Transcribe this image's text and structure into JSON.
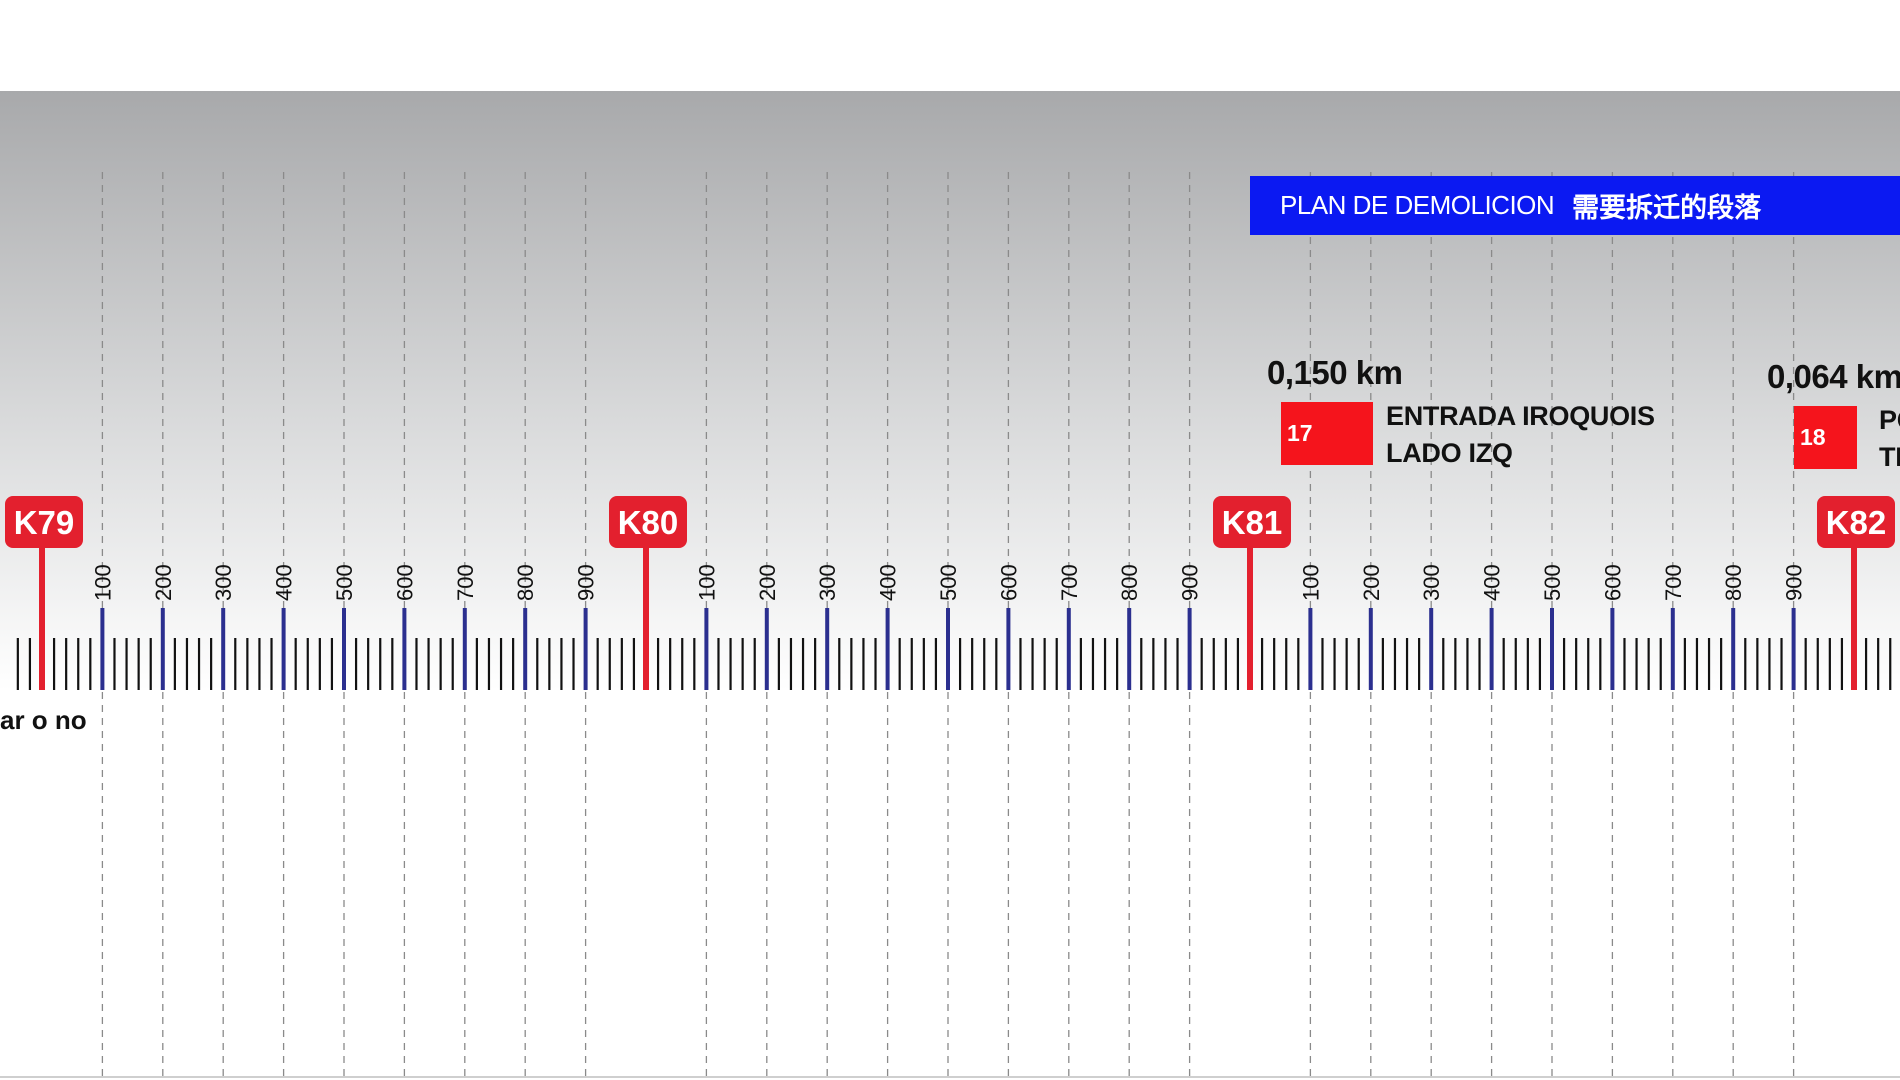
{
  "banner": {
    "label": "PLAN DE DEMOLICION",
    "label_cn": "需要拆迁的段落"
  },
  "left_note": "ar o no",
  "kilometers": [
    {
      "label": "K79"
    },
    {
      "label": "K80"
    },
    {
      "label": "K81"
    },
    {
      "label": "K82"
    }
  ],
  "sub_ticks": [
    "100",
    "200",
    "300",
    "400",
    "500",
    "600",
    "700",
    "800",
    "900"
  ],
  "items": [
    {
      "number": "17",
      "distance": "0,150 km",
      "line1": "ENTRADA IROQUOIS",
      "line2": "LADO IZQ"
    },
    {
      "number": "18",
      "distance": "0,064 km",
      "line1": "PC",
      "line2": "TI"
    }
  ],
  "colors": {
    "km_marker": "#e3202e",
    "sub_tick": "#2b2f8f",
    "minor_tick": "#111111",
    "banner": "#0b19f2",
    "item_box": "#f5141c"
  }
}
